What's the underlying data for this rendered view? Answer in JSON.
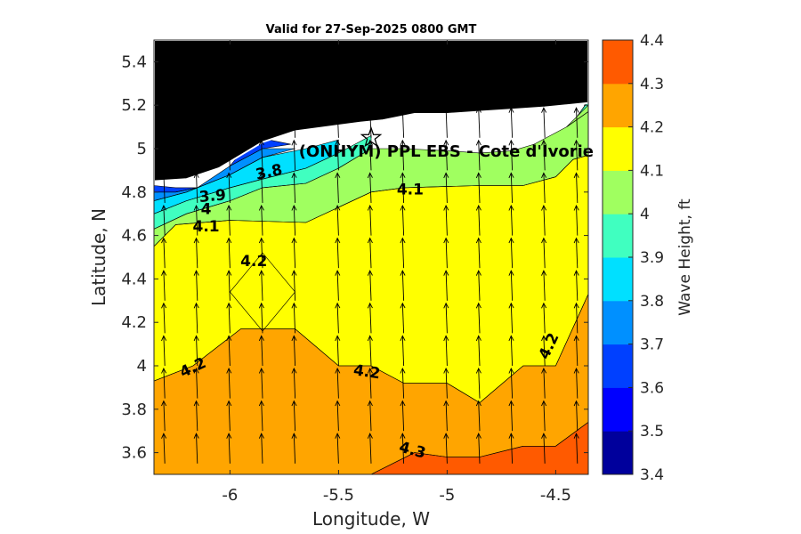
{
  "chart_data": {
    "type": "contourf",
    "title": "Valid for 27-Sep-2025 0800 GMT",
    "xlabel": "Longitude, W",
    "ylabel": "Latitude, N",
    "xlim": [
      -6.35,
      -4.35
    ],
    "ylim": [
      3.5,
      5.5
    ],
    "xticks": [
      -6,
      -5.5,
      -5,
      -4.5
    ],
    "xtick_labels": [
      "-6",
      "-5.5",
      "-5",
      "-4.5"
    ],
    "yticks": [
      3.6,
      3.8,
      4,
      4.2,
      4.4,
      4.6,
      4.8,
      5,
      5.2,
      5.4
    ],
    "ytick_labels": [
      "3.6",
      "3.8",
      "4",
      "4.2",
      "4.4",
      "4.6",
      "4.8",
      "5",
      "5.2",
      "5.4"
    ],
    "station_label": "(ONHYM) PPL EBS  - Cote d'Ivorie",
    "station_marker": {
      "lon": -5.35,
      "lat": 5.05,
      "symbol": "star"
    },
    "contour_labels": [
      {
        "text": "3.8",
        "lon": -5.82,
        "lat": 4.89,
        "angle": -12
      },
      {
        "text": "3.9",
        "lon": -6.08,
        "lat": 4.78,
        "angle": -5
      },
      {
        "text": "4",
        "lon": -6.11,
        "lat": 4.72,
        "angle": 0
      },
      {
        "text": "4.1",
        "lon": -6.11,
        "lat": 4.64,
        "angle": 0
      },
      {
        "text": "4.1",
        "lon": -5.17,
        "lat": 4.81,
        "angle": 0
      },
      {
        "text": "4.2",
        "lon": -5.89,
        "lat": 4.48,
        "angle": 0
      },
      {
        "text": "4.2",
        "lon": -6.17,
        "lat": 3.99,
        "angle": -25
      },
      {
        "text": "4.2",
        "lon": -5.37,
        "lat": 3.97,
        "angle": 8
      },
      {
        "text": "4.2",
        "lon": -4.53,
        "lat": 4.09,
        "angle": -65
      },
      {
        "text": "4.3",
        "lon": -5.16,
        "lat": 3.61,
        "angle": 15
      }
    ],
    "colorbar": {
      "label": "Wave Height, ft",
      "levels": [
        3.4,
        3.5,
        3.6,
        3.7,
        3.8,
        3.9,
        4.0,
        4.1,
        4.2,
        4.3,
        4.4
      ],
      "tick_labels": [
        "3.4",
        "3.5",
        "3.6",
        "3.7",
        "3.8",
        "3.9",
        "4",
        "4.1",
        "4.2",
        "4.3",
        "4.4"
      ],
      "colors": [
        "#00009c",
        "#0000ff",
        "#0040ff",
        "#0090ff",
        "#00e0ff",
        "#40ffc0",
        "#a0ff60",
        "#ffff00",
        "#ffa500",
        "#ff5a00"
      ]
    },
    "fill_regions": [
      {
        "level": "4.3",
        "color": "#ff5a00",
        "polygon": [
          [
            -5.35,
            3.5
          ],
          [
            -5.15,
            3.6
          ],
          [
            -5.0,
            3.58
          ],
          [
            -4.85,
            3.58
          ],
          [
            -4.65,
            3.63
          ],
          [
            -4.5,
            3.63
          ],
          [
            -4.35,
            3.74
          ],
          [
            -4.35,
            3.5
          ]
        ]
      },
      {
        "level": "4.2",
        "color": "#ffa500",
        "polygon": [
          [
            -6.35,
            3.5
          ],
          [
            -6.35,
            3.93
          ],
          [
            -6.17,
            4.0
          ],
          [
            -5.95,
            4.17
          ],
          [
            -5.7,
            4.17
          ],
          [
            -5.5,
            4.0
          ],
          [
            -5.35,
            4.0
          ],
          [
            -5.2,
            3.92
          ],
          [
            -5.0,
            3.92
          ],
          [
            -4.85,
            3.83
          ],
          [
            -4.65,
            4.0
          ],
          [
            -4.5,
            4.0
          ],
          [
            -4.35,
            4.33
          ],
          [
            -4.35,
            3.74
          ],
          [
            -4.5,
            3.63
          ],
          [
            -4.65,
            3.63
          ],
          [
            -4.85,
            3.58
          ],
          [
            -5.0,
            3.58
          ],
          [
            -5.15,
            3.6
          ],
          [
            -5.35,
            3.5
          ]
        ]
      },
      {
        "level": "4.2 (inner)",
        "color": "#ffa500",
        "polygon": [
          [
            -6.0,
            4.34
          ],
          [
            -5.85,
            4.52
          ],
          [
            -5.7,
            4.34
          ],
          [
            -5.85,
            4.16
          ]
        ]
      },
      {
        "level": "4.1",
        "color": "#ffff00",
        "polygon": [
          [
            -6.35,
            3.93
          ],
          [
            -6.35,
            4.55
          ],
          [
            -6.25,
            4.65
          ],
          [
            -6.0,
            4.67
          ],
          [
            -5.65,
            4.66
          ],
          [
            -5.35,
            4.8
          ],
          [
            -5.2,
            4.82
          ],
          [
            -4.85,
            4.83
          ],
          [
            -4.65,
            4.83
          ],
          [
            -4.5,
            4.87
          ],
          [
            -4.42,
            4.95
          ],
          [
            -4.35,
            4.97
          ],
          [
            -4.35,
            4.33
          ],
          [
            -4.5,
            4.0
          ],
          [
            -4.65,
            4.0
          ],
          [
            -4.85,
            3.83
          ],
          [
            -5.0,
            3.92
          ],
          [
            -5.2,
            3.92
          ],
          [
            -5.35,
            4.0
          ],
          [
            -5.5,
            4.0
          ],
          [
            -5.7,
            4.17
          ],
          [
            -5.95,
            4.17
          ],
          [
            -6.17,
            4.0
          ]
        ]
      },
      {
        "level": "4.0",
        "color": "#a0ff60",
        "polygon": [
          [
            -6.35,
            4.55
          ],
          [
            -6.35,
            4.63
          ],
          [
            -6.2,
            4.7
          ],
          [
            -6.0,
            4.76
          ],
          [
            -5.85,
            4.82
          ],
          [
            -5.65,
            4.84
          ],
          [
            -5.5,
            4.91
          ],
          [
            -5.35,
            5.0
          ],
          [
            -5.2,
            5.0
          ],
          [
            -5.0,
            4.99
          ],
          [
            -4.85,
            4.98
          ],
          [
            -4.7,
            4.99
          ],
          [
            -4.6,
            5.02
          ],
          [
            -4.45,
            5.1
          ],
          [
            -4.35,
            5.17
          ],
          [
            -4.35,
            4.97
          ],
          [
            -4.42,
            4.95
          ],
          [
            -4.5,
            4.87
          ],
          [
            -4.65,
            4.83
          ],
          [
            -4.85,
            4.83
          ],
          [
            -5.2,
            4.82
          ],
          [
            -5.35,
            4.8
          ],
          [
            -5.65,
            4.66
          ],
          [
            -6.0,
            4.67
          ],
          [
            -6.25,
            4.65
          ]
        ]
      },
      {
        "level": "3.9",
        "color": "#40ffc0",
        "polygon": [
          [
            -6.35,
            4.63
          ],
          [
            -6.35,
            4.7
          ],
          [
            -6.2,
            4.76
          ],
          [
            -6.0,
            4.82
          ],
          [
            -5.85,
            4.86
          ],
          [
            -5.65,
            4.91
          ],
          [
            -5.5,
            4.98
          ],
          [
            -5.35,
            5.06
          ],
          [
            -5.35,
            5.0
          ],
          [
            -5.5,
            4.91
          ],
          [
            -5.65,
            4.84
          ],
          [
            -5.85,
            4.82
          ],
          [
            -6.0,
            4.76
          ],
          [
            -6.2,
            4.7
          ]
        ]
      },
      {
        "level": "3.8",
        "color": "#00e0ff",
        "polygon": [
          [
            -6.35,
            4.7
          ],
          [
            -6.35,
            4.76
          ],
          [
            -6.2,
            4.8
          ],
          [
            -6.0,
            4.88
          ],
          [
            -5.85,
            4.96
          ],
          [
            -5.65,
            5.0
          ],
          [
            -5.5,
            5.04
          ],
          [
            -5.5,
            4.98
          ],
          [
            -5.65,
            4.91
          ],
          [
            -5.85,
            4.86
          ],
          [
            -6.0,
            4.82
          ],
          [
            -6.2,
            4.76
          ]
        ]
      },
      {
        "level": "3.7",
        "color": "#0090ff",
        "polygon": [
          [
            -6.35,
            4.76
          ],
          [
            -6.35,
            4.8
          ],
          [
            -6.25,
            4.8
          ],
          [
            -6.15,
            4.82
          ],
          [
            -6.0,
            4.92
          ],
          [
            -5.85,
            5.0
          ],
          [
            -5.7,
            5.0
          ],
          [
            -5.85,
            4.96
          ],
          [
            -6.0,
            4.88
          ],
          [
            -6.2,
            4.8
          ]
        ]
      },
      {
        "level": "3.6",
        "color": "#0040ff",
        "polygon": [
          [
            -6.35,
            4.8
          ],
          [
            -6.35,
            4.83
          ],
          [
            -6.25,
            4.82
          ],
          [
            -6.15,
            4.82
          ],
          [
            -6.25,
            4.8
          ]
        ]
      },
      {
        "level": "3.6 (coast)",
        "color": "#0040ff",
        "polygon": [
          [
            -6.0,
            4.92
          ],
          [
            -5.92,
            5.02
          ],
          [
            -5.82,
            5.04
          ],
          [
            -5.72,
            5.02
          ],
          [
            -5.85,
            5.0
          ]
        ]
      },
      {
        "level": "4.0 (east)",
        "color": "#a0ff60",
        "polygon": [
          [
            -4.45,
            5.1
          ],
          [
            -4.4,
            5.15
          ],
          [
            -4.35,
            5.22
          ],
          [
            -4.35,
            5.17
          ]
        ]
      },
      {
        "level": "3.9 (east)",
        "color": "#40ffc0",
        "polygon": [
          [
            -4.4,
            5.15
          ],
          [
            -4.35,
            5.2
          ],
          [
            -4.35,
            5.22
          ]
        ]
      }
    ],
    "land_fill": {
      "color": "#000000",
      "polygon": [
        [
          -6.35,
          4.85
        ],
        [
          -6.2,
          4.86
        ],
        [
          -6.05,
          4.91
        ],
        [
          -5.95,
          4.97
        ],
        [
          -5.85,
          5.03
        ],
        [
          -5.7,
          5.08
        ],
        [
          -5.55,
          5.1
        ],
        [
          -5.4,
          5.12
        ],
        [
          -5.3,
          5.13
        ],
        [
          -5.15,
          5.16
        ],
        [
          -5.0,
          5.16
        ],
        [
          -4.85,
          5.17
        ],
        [
          -4.7,
          5.18
        ],
        [
          -4.55,
          5.19
        ],
        [
          -4.45,
          5.2
        ],
        [
          -4.35,
          5.21
        ],
        [
          -4.35,
          5.5
        ],
        [
          -6.35,
          5.5
        ]
      ]
    },
    "vectors": {
      "lons": [
        -6.3,
        -6.15,
        -6.0,
        -5.85,
        -5.7,
        -5.5,
        -5.35,
        -5.2,
        -5.0,
        -4.85,
        -4.7,
        -4.55,
        -4.4
      ],
      "lats": [
        3.55,
        3.7,
        3.85,
        4.0,
        4.15,
        4.3,
        4.45,
        4.6,
        4.75,
        4.9,
        5.05
      ],
      "direction_deg": 100,
      "length": 0.14
    }
  }
}
